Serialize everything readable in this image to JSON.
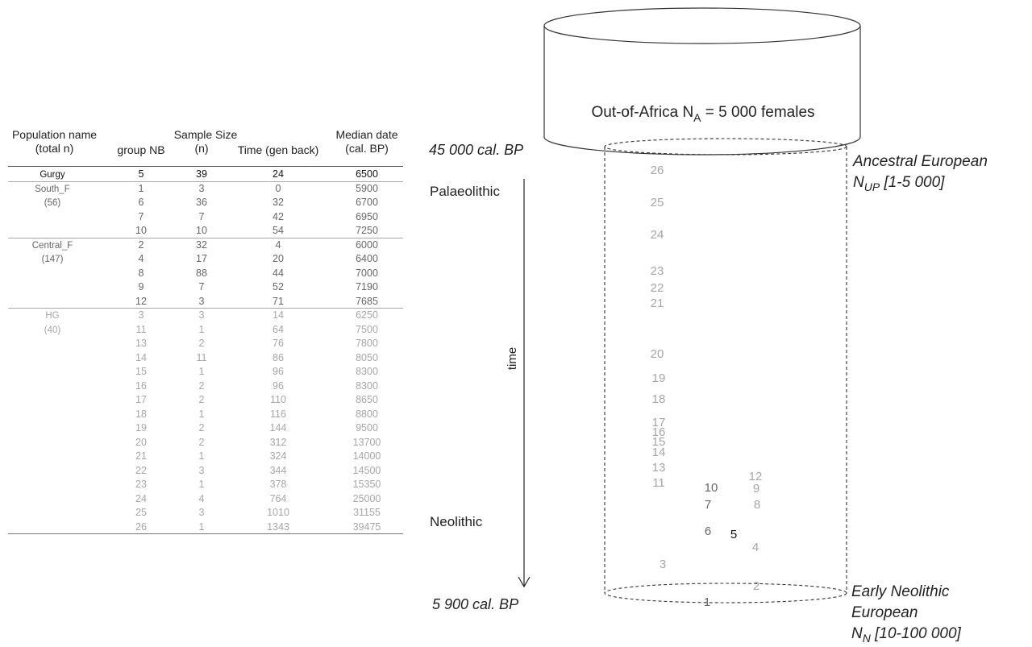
{
  "table": {
    "headers": {
      "population_name": "Population name",
      "total_n": "(total n)",
      "sample_size": "Sample Size",
      "group_nb": "group NB",
      "n": "(n)",
      "time": "Time (gen back)",
      "median_date": "Median date",
      "cal_bp": "(cal. BP)"
    },
    "sections": [
      {
        "name": "Gurgy",
        "total": "",
        "tone": "dark",
        "rows": [
          {
            "group": "5",
            "n": "39",
            "time": "24",
            "date": "6500"
          }
        ]
      },
      {
        "name": "South_F",
        "total": "(56)",
        "tone": "mid",
        "rows": [
          {
            "group": "1",
            "n": "3",
            "time": "0",
            "date": "5900"
          },
          {
            "group": "6",
            "n": "36",
            "time": "32",
            "date": "6700"
          },
          {
            "group": "7",
            "n": "7",
            "time": "42",
            "date": "6950"
          },
          {
            "group": "10",
            "n": "10",
            "time": "54",
            "date": "7250"
          }
        ]
      },
      {
        "name": "Central_F",
        "total": "(147)",
        "tone": "mid",
        "rows": [
          {
            "group": "2",
            "n": "32",
            "time": "4",
            "date": "6000"
          },
          {
            "group": "4",
            "n": "17",
            "time": "20",
            "date": "6400"
          },
          {
            "group": "8",
            "n": "88",
            "time": "44",
            "date": "7000"
          },
          {
            "group": "9",
            "n": "7",
            "time": "52",
            "date": "7190"
          },
          {
            "group": "12",
            "n": "3",
            "time": "71",
            "date": "7685"
          }
        ]
      },
      {
        "name": "HG",
        "total": "(40)",
        "tone": "light",
        "rows": [
          {
            "group": "3",
            "n": "3",
            "time": "14",
            "date": "6250"
          },
          {
            "group": "11",
            "n": "1",
            "time": "64",
            "date": "7500"
          },
          {
            "group": "13",
            "n": "2",
            "time": "76",
            "date": "7800"
          },
          {
            "group": "14",
            "n": "11",
            "time": "86",
            "date": "8050"
          },
          {
            "group": "15",
            "n": "1",
            "time": "96",
            "date": "8300"
          },
          {
            "group": "16",
            "n": "2",
            "time": "96",
            "date": "8300"
          },
          {
            "group": "17",
            "n": "2",
            "time": "110",
            "date": "8650"
          },
          {
            "group": "18",
            "n": "1",
            "time": "116",
            "date": "8800"
          },
          {
            "group": "19",
            "n": "2",
            "time": "144",
            "date": "9500"
          },
          {
            "group": "20",
            "n": "2",
            "time": "312",
            "date": "13700"
          },
          {
            "group": "21",
            "n": "1",
            "time": "324",
            "date": "14000"
          },
          {
            "group": "22",
            "n": "3",
            "time": "344",
            "date": "14500"
          },
          {
            "group": "23",
            "n": "1",
            "time": "378",
            "date": "15350"
          },
          {
            "group": "24",
            "n": "4",
            "time": "764",
            "date": "25000"
          },
          {
            "group": "25",
            "n": "3",
            "time": "1010",
            "date": "31155"
          },
          {
            "group": "26",
            "n": "1",
            "time": "1343",
            "date": "39475"
          }
        ]
      }
    ]
  },
  "diagram": {
    "top_box_label_pre": "Out-of-Africa N",
    "top_box_label_sub": "A",
    "top_box_label_post": " = 5 000 females",
    "date_top": "45 000 cal. BP",
    "date_bottom": "5 900 cal. BP",
    "period_top": "Palaeolithic",
    "period_bottom": "Neolithic",
    "time_label": "time",
    "ancestral_line1": "Ancestral European",
    "ancestral_pre": "N",
    "ancestral_sub": "UP",
    "ancestral_post": " [1-5 000]",
    "early_line1": "Early Neolithic",
    "early_line2": "European",
    "early_pre": "N",
    "early_sub": "N",
    "early_post": " [10-100 000]",
    "group_markers": [
      {
        "label": "26",
        "tone": "light"
      },
      {
        "label": "25",
        "tone": "light"
      },
      {
        "label": "24",
        "tone": "light"
      },
      {
        "label": "23",
        "tone": "light"
      },
      {
        "label": "22",
        "tone": "light"
      },
      {
        "label": "21",
        "tone": "light"
      },
      {
        "label": "20",
        "tone": "light"
      },
      {
        "label": "19",
        "tone": "light"
      },
      {
        "label": "18",
        "tone": "light"
      },
      {
        "label": "17",
        "tone": "light"
      },
      {
        "label": "16",
        "tone": "light"
      },
      {
        "label": "15",
        "tone": "light"
      },
      {
        "label": "14",
        "tone": "light"
      },
      {
        "label": "13",
        "tone": "light"
      },
      {
        "label": "11",
        "tone": "light"
      },
      {
        "label": "12",
        "tone": "light"
      },
      {
        "label": "10",
        "tone": "mid"
      },
      {
        "label": "9",
        "tone": "light"
      },
      {
        "label": "7",
        "tone": "mid"
      },
      {
        "label": "8",
        "tone": "light"
      },
      {
        "label": "6",
        "tone": "mid"
      },
      {
        "label": "5",
        "tone": "dark"
      },
      {
        "label": "4",
        "tone": "light"
      },
      {
        "label": "3",
        "tone": "light"
      },
      {
        "label": "2",
        "tone": "light"
      },
      {
        "label": "1",
        "tone": "mid"
      }
    ],
    "colors": {
      "dark": "#111111",
      "mid": "#666666",
      "light": "#a6a6a6",
      "line": "#333333"
    }
  }
}
